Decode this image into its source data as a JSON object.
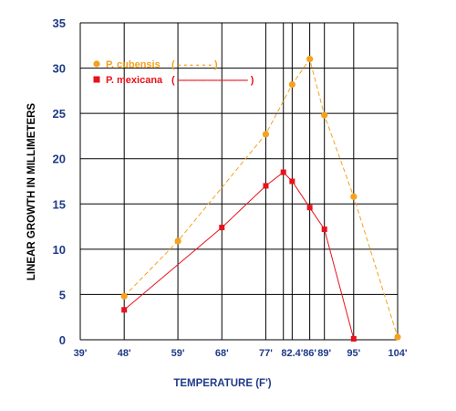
{
  "chart_data": {
    "type": "line",
    "xlabel": "TEMPERATURE (F')",
    "ylabel": "LINEAR GROWTH IN MILLIMETERS",
    "xlim": [
      39,
      104
    ],
    "ylim": [
      0,
      35
    ],
    "grid": true,
    "legend_position": "top-left",
    "x_ticks": [
      {
        "value": 39,
        "label": "39'"
      },
      {
        "value": 48,
        "label": "48'"
      },
      {
        "value": 59,
        "label": "59'"
      },
      {
        "value": 68,
        "label": "68'"
      },
      {
        "value": 77,
        "label": "77'"
      },
      {
        "value": 82.4,
        "label": "82.4'"
      },
      {
        "value": 86,
        "label": "86'"
      },
      {
        "value": 89,
        "label": "89'"
      },
      {
        "value": 95,
        "label": "95'"
      },
      {
        "value": 104,
        "label": "104'"
      }
    ],
    "x_extra_gridlines": [
      80.6
    ],
    "y_ticks": [
      0,
      5,
      10,
      15,
      20,
      25,
      30,
      35
    ],
    "series": [
      {
        "name": "P. cubensis",
        "legend_suffix": "( - - - - - - )",
        "marker": "circle",
        "line_style": "dashed",
        "color": "#f5a11c",
        "points": [
          {
            "x": 48,
            "y": 4.8
          },
          {
            "x": 59,
            "y": 10.9
          },
          {
            "x": 77,
            "y": 22.7
          },
          {
            "x": 82.4,
            "y": 28.2
          },
          {
            "x": 86,
            "y": 31.0
          },
          {
            "x": 89,
            "y": 24.8
          },
          {
            "x": 95,
            "y": 15.8
          },
          {
            "x": 104,
            "y": 0.3
          }
        ]
      },
      {
        "name": "P. mexicana",
        "legend_suffix": "( ——————— )",
        "marker": "square",
        "line_style": "solid",
        "color": "#e8121c",
        "points": [
          {
            "x": 48,
            "y": 3.3
          },
          {
            "x": 68,
            "y": 12.4
          },
          {
            "x": 77,
            "y": 17.0
          },
          {
            "x": 80.6,
            "y": 18.5
          },
          {
            "x": 82.4,
            "y": 17.5
          },
          {
            "x": 86,
            "y": 14.6
          },
          {
            "x": 89,
            "y": 12.2
          },
          {
            "x": 95,
            "y": 0.1
          }
        ]
      }
    ]
  },
  "colors": {
    "tick_labels": "#1f3a88",
    "x_title": "#1f3a88",
    "y_title": "#000000",
    "grid": "#000000"
  }
}
